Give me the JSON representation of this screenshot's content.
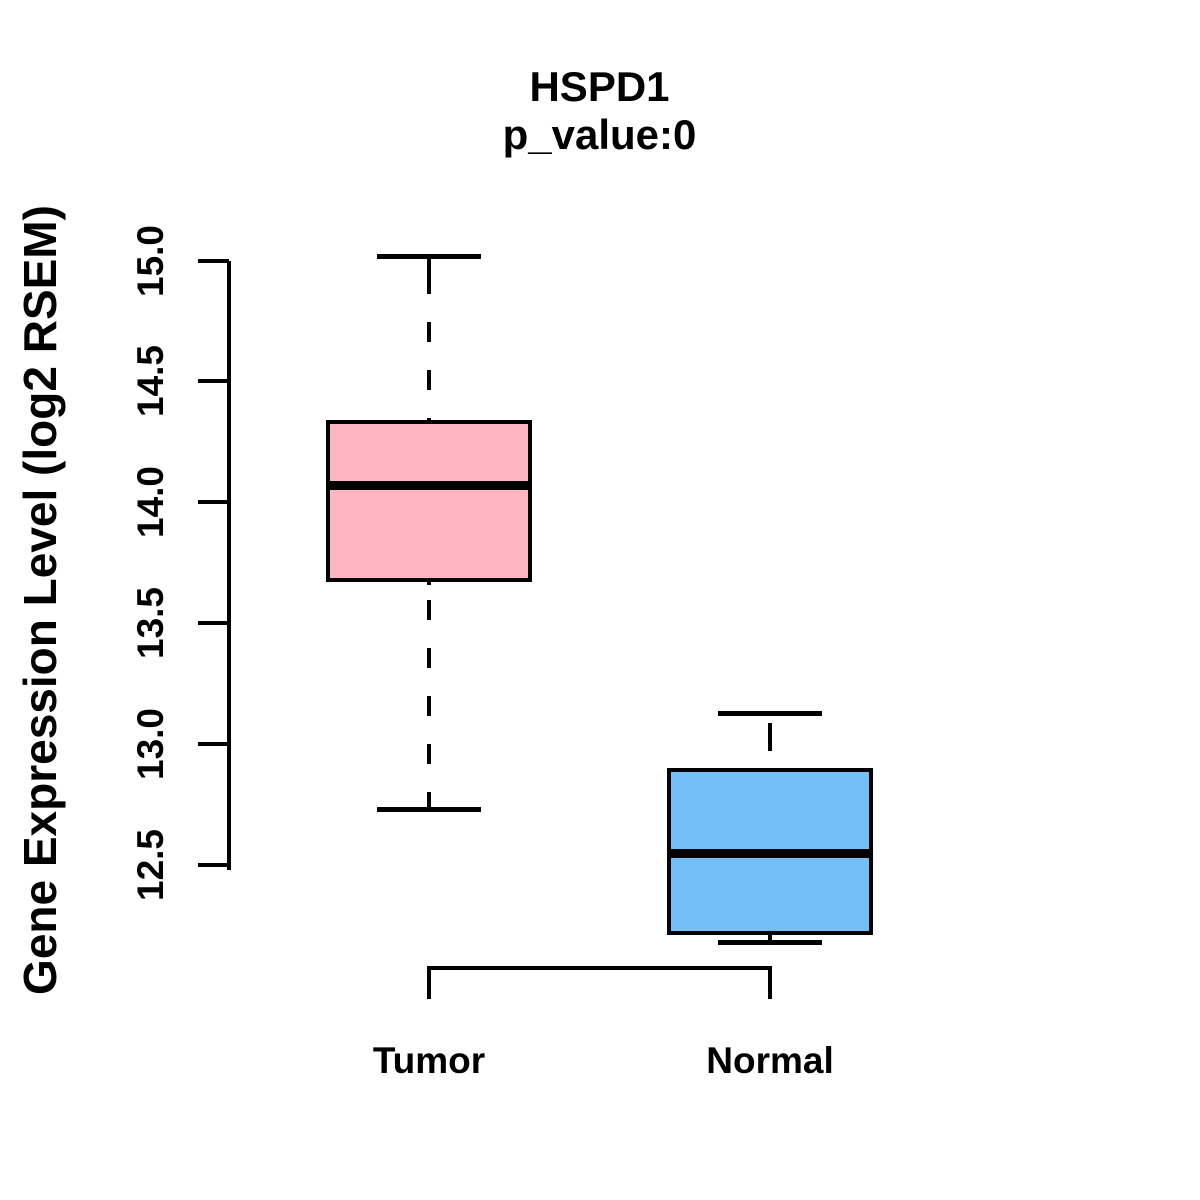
{
  "page": {
    "background": "#ffffff",
    "text_color": "#000000"
  },
  "chart_data": {
    "type": "boxplot",
    "title": "HSPD1",
    "subtitle": "p_value:0",
    "xlabel": "",
    "ylabel": "Gene Expression Level (log2 RSEM)",
    "categories": [
      "Tumor",
      "Normal"
    ],
    "y_ticks": [
      12.5,
      13.0,
      13.5,
      14.0,
      14.5,
      15.0
    ],
    "ylim": [
      12.1,
      15.1
    ],
    "grid": false,
    "legend": "none",
    "axis_color": "#000000",
    "whisker_style": "dashed",
    "series": [
      {
        "name": "Tumor",
        "box_color": "#FFB6C1",
        "lower_whisker": 12.73,
        "q1": 13.67,
        "median": 14.07,
        "q3": 14.34,
        "upper_whisker": 15.02
      },
      {
        "name": "Normal",
        "box_color": "#73BFF7",
        "lower_whisker": 12.18,
        "q1": 12.21,
        "median": 12.55,
        "q3": 12.9,
        "upper_whisker": 13.13
      }
    ]
  }
}
